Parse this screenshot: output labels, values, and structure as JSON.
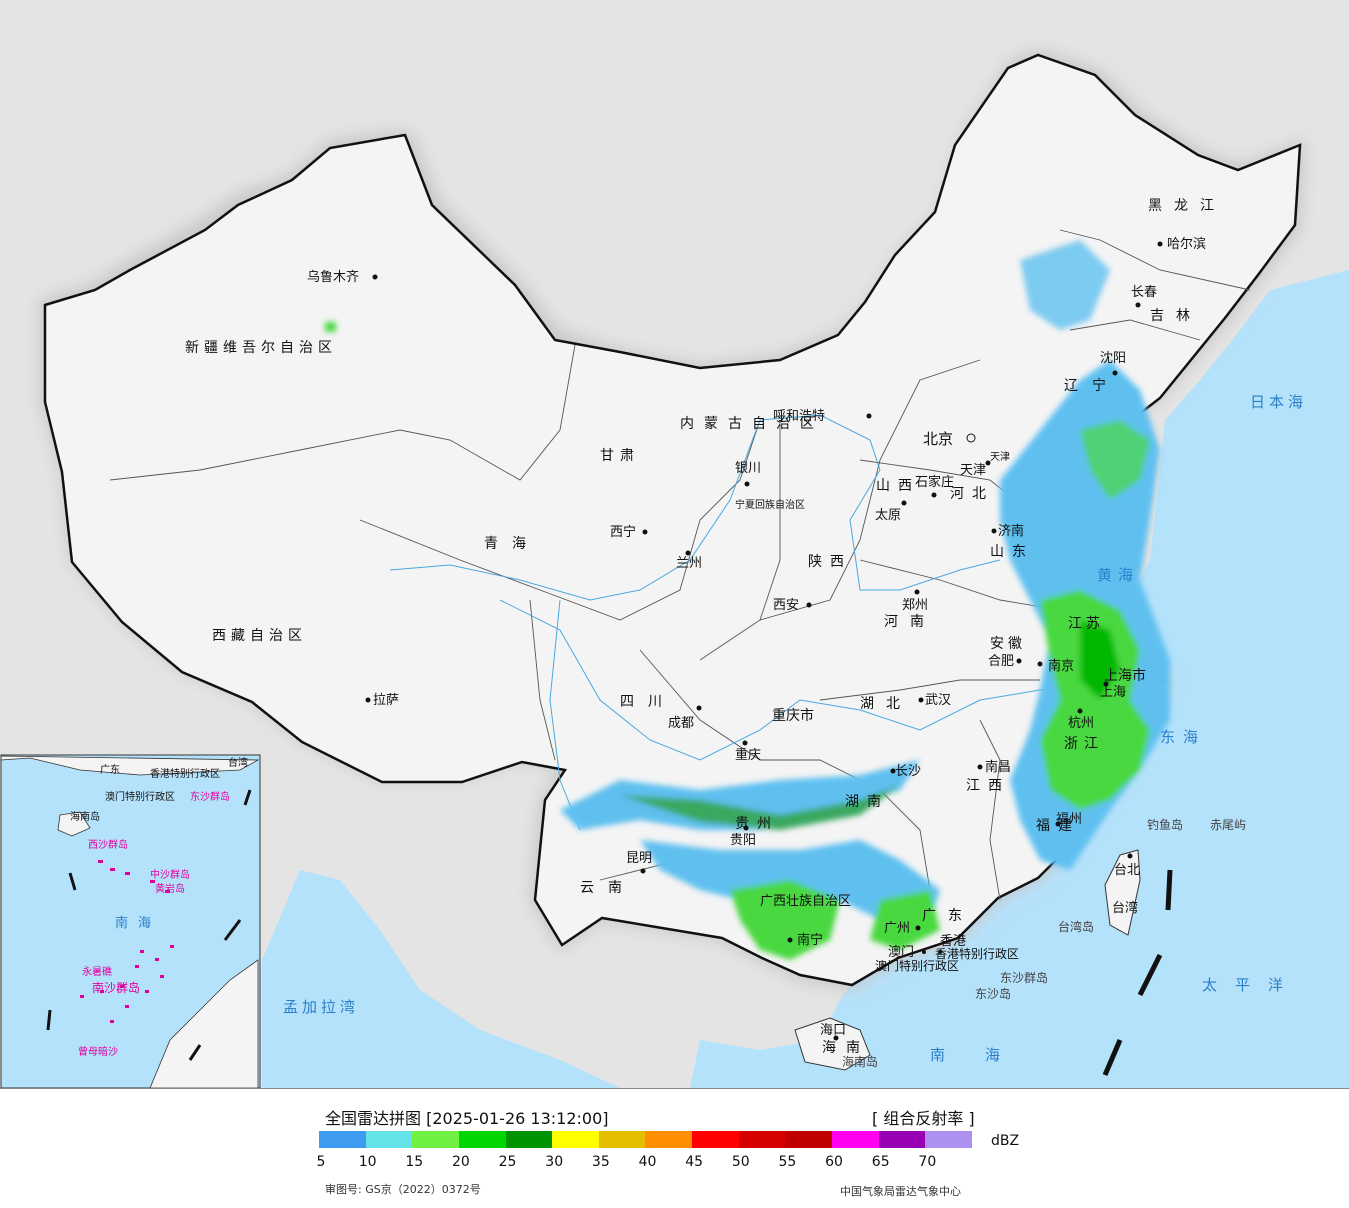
{
  "title": "全国雷达拼图 [2025-01-26 13:12:00]",
  "product": "[ 组合反射率 ]",
  "unit": "dBZ",
  "approval": "审图号: GS京（2022）0372号",
  "source": "中国气象局雷达气象中心",
  "legend": {
    "labels": [
      "5",
      "10",
      "15",
      "20",
      "25",
      "30",
      "35",
      "40",
      "45",
      "50",
      "55",
      "60",
      "65",
      "70"
    ],
    "colors": [
      "#3d9bf0",
      "#63e3e8",
      "#70f043",
      "#00d600",
      "#009300",
      "#ffff00",
      "#e5be00",
      "#ff8f00",
      "#ff0000",
      "#d60000",
      "#c00000",
      "#ff00f0",
      "#9800b4",
      "#ad90f0"
    ]
  },
  "map": {
    "regions": [
      "新疆维吾尔自治区",
      "西藏自治区",
      "青海",
      "甘肃",
      "内蒙古自治区",
      "宁夏回族自治区",
      "陕西",
      "山西",
      "河北",
      "山东",
      "河南",
      "湖北",
      "湖南",
      "四川",
      "重庆市",
      "贵州",
      "云南",
      "广西壮族自治区",
      "广东",
      "江西",
      "福建",
      "浙江",
      "江苏",
      "安徽",
      "辽宁",
      "吉林",
      "黑龙江",
      "海南",
      "台湾",
      "天津",
      "上海市",
      "香港特别行政区",
      "澳门特别行政区"
    ],
    "cities": [
      "乌鲁木齐",
      "拉萨",
      "西宁",
      "兰州",
      "银川",
      "呼和浩特",
      "北京",
      "天津",
      "石家庄",
      "太原",
      "济南",
      "郑州",
      "西安",
      "成都",
      "重庆",
      "贵阳",
      "昆明",
      "南宁",
      "广州",
      "澳门",
      "香港",
      "海口",
      "长沙",
      "武汉",
      "南昌",
      "合肥",
      "南京",
      "上海",
      "杭州",
      "福州",
      "台北",
      "沈阳",
      "长春",
      "哈尔滨"
    ],
    "seas": [
      "日本海",
      "黄海",
      "东海",
      "南海",
      "太平洋",
      "孟加拉湾"
    ],
    "islands": [
      "钓鱼岛",
      "赤尾屿",
      "台湾岛",
      "东沙群岛",
      "东沙岛",
      "海南岛"
    ],
    "inset": [
      "广东",
      "香港特别行政区",
      "澳门特别行政区",
      "台湾",
      "东沙群岛",
      "海南岛",
      "西沙群岛",
      "中沙群岛",
      "黄岩岛",
      "南海",
      "永暑礁",
      "南沙群岛",
      "曾母暗沙"
    ]
  }
}
